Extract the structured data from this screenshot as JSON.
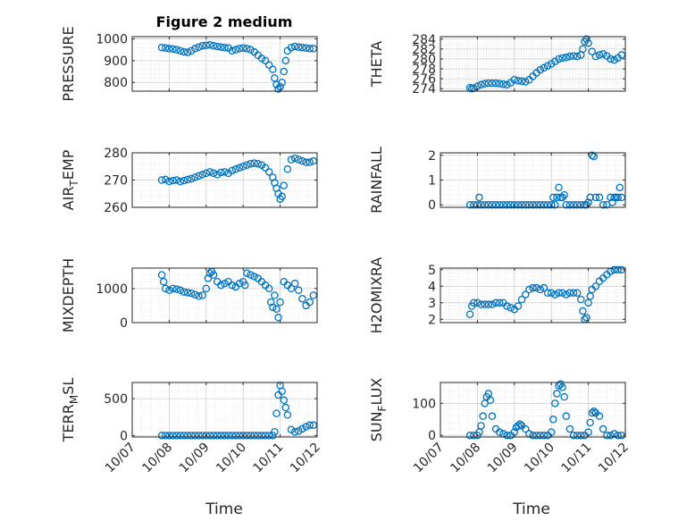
{
  "figure_title": "Figure 2 medium",
  "x_axis_label": "Time",
  "marker_color": "#0072BD",
  "chart_data": [
    {
      "type": "scatter",
      "ylabel_main": "PRESSURE",
      "ylabel_sub": "",
      "ylim": [
        760,
        1010
      ],
      "yticks": [
        800,
        900,
        1000
      ],
      "xlim": [
        0,
        5
      ],
      "xticks": [
        0,
        1,
        2,
        3,
        4,
        5
      ],
      "xticklabels": [
        "10/07",
        "10/08",
        "10/09",
        "10/10",
        "10/11",
        "10/12"
      ],
      "x": [
        0.8,
        0.9,
        1.0,
        1.1,
        1.2,
        1.3,
        1.4,
        1.5,
        1.6,
        1.7,
        1.8,
        1.9,
        2.0,
        2.1,
        2.2,
        2.3,
        2.4,
        2.5,
        2.6,
        2.7,
        2.8,
        2.9,
        3.0,
        3.1,
        3.2,
        3.3,
        3.4,
        3.5,
        3.6,
        3.7,
        3.8,
        3.85,
        3.9,
        3.95,
        4.0,
        4.05,
        4.1,
        4.15,
        4.2,
        4.3,
        4.4,
        4.5,
        4.6,
        4.7,
        4.8,
        4.9
      ],
      "y": [
        960,
        958,
        955,
        953,
        950,
        945,
        940,
        938,
        945,
        955,
        962,
        968,
        970,
        972,
        968,
        965,
        962,
        960,
        958,
        945,
        950,
        955,
        958,
        955,
        950,
        940,
        925,
        910,
        900,
        880,
        860,
        820,
        790,
        770,
        780,
        800,
        850,
        900,
        945,
        960,
        965,
        962,
        960,
        958,
        955,
        955
      ]
    },
    {
      "type": "scatter",
      "ylabel_main": "THETA",
      "ylabel_sub": "",
      "ylim": [
        273.5,
        284.5
      ],
      "yticks": [
        274,
        276,
        278,
        280,
        282,
        284
      ],
      "xlim": [
        0,
        5
      ],
      "xticks": [
        0,
        1,
        2,
        3,
        4,
        5
      ],
      "xticklabels": [
        "10/07",
        "10/08",
        "10/09",
        "10/10",
        "10/11",
        "10/12"
      ],
      "x": [
        0.8,
        0.85,
        0.9,
        1.0,
        1.1,
        1.2,
        1.3,
        1.4,
        1.5,
        1.6,
        1.7,
        1.8,
        1.9,
        2.0,
        2.1,
        2.2,
        2.3,
        2.4,
        2.5,
        2.6,
        2.7,
        2.8,
        2.9,
        3.0,
        3.1,
        3.2,
        3.3,
        3.4,
        3.5,
        3.6,
        3.7,
        3.8,
        3.85,
        3.9,
        3.95,
        4.0,
        4.1,
        4.2,
        4.3,
        4.4,
        4.5,
        4.6,
        4.7,
        4.8,
        4.9
      ],
      "y": [
        274.2,
        274.0,
        274.1,
        274.5,
        274.8,
        275.0,
        275.1,
        275.1,
        275.1,
        275.0,
        274.9,
        274.8,
        275.2,
        275.8,
        275.6,
        275.5,
        275.4,
        275.8,
        276.5,
        277.2,
        277.8,
        278.2,
        278.6,
        279.0,
        279.5,
        280.0,
        280.2,
        280.3,
        280.5,
        280.6,
        280.5,
        280.8,
        282.0,
        283.5,
        284.0,
        283.2,
        281.5,
        280.5,
        280.8,
        281.0,
        280.6,
        280.0,
        279.8,
        280.2,
        280.8
      ]
    },
    {
      "type": "scatter",
      "ylabel_main": "AIR",
      "ylabel_sub": "T",
      "ylabel_after": "EMP",
      "ylim": [
        260,
        280
      ],
      "yticks": [
        260,
        270,
        280
      ],
      "xlim": [
        0,
        5
      ],
      "xticks": [
        0,
        1,
        2,
        3,
        4,
        5
      ],
      "xticklabels": [
        "10/07",
        "10/08",
        "10/09",
        "10/10",
        "10/11",
        "10/12"
      ],
      "x": [
        0.8,
        0.9,
        1.0,
        1.1,
        1.2,
        1.3,
        1.4,
        1.5,
        1.6,
        1.7,
        1.8,
        1.9,
        2.0,
        2.1,
        2.2,
        2.3,
        2.4,
        2.5,
        2.6,
        2.7,
        2.8,
        2.9,
        3.0,
        3.1,
        3.2,
        3.3,
        3.4,
        3.5,
        3.6,
        3.7,
        3.8,
        3.85,
        3.9,
        3.95,
        4.0,
        4.05,
        4.1,
        4.2,
        4.3,
        4.4,
        4.5,
        4.6,
        4.7,
        4.8,
        4.9
      ],
      "y": [
        270,
        270.2,
        269.5,
        269.8,
        270.0,
        269.5,
        269.8,
        270.2,
        270.5,
        271.0,
        271.5,
        272.0,
        272.5,
        273.0,
        272.5,
        272.0,
        272.8,
        273.0,
        272.5,
        273.5,
        274.0,
        274.5,
        275.0,
        275.5,
        276.0,
        276.2,
        276.0,
        275.5,
        274.5,
        273.0,
        271.0,
        269.0,
        267.0,
        265.0,
        263.0,
        264.0,
        268.0,
        274.0,
        277.5,
        278.0,
        277.5,
        277.0,
        276.5,
        276.5,
        277.0
      ]
    },
    {
      "type": "scatter",
      "ylabel_main": "RAINFALL",
      "ylabel_sub": "",
      "ylim": [
        -0.1,
        2.1
      ],
      "yticks": [
        0,
        1,
        2
      ],
      "xlim": [
        0,
        5
      ],
      "xticks": [
        0,
        1,
        2,
        3,
        4,
        5
      ],
      "xticklabels": [
        "10/07",
        "10/08",
        "10/09",
        "10/10",
        "10/11",
        "10/12"
      ],
      "x": [
        0.8,
        0.9,
        1.0,
        1.05,
        1.1,
        1.2,
        1.3,
        1.4,
        1.5,
        1.6,
        1.7,
        1.8,
        1.9,
        2.0,
        2.1,
        2.2,
        2.3,
        2.4,
        2.5,
        2.6,
        2.7,
        2.8,
        2.9,
        3.0,
        3.05,
        3.1,
        3.15,
        3.2,
        3.25,
        3.3,
        3.35,
        3.4,
        3.5,
        3.6,
        3.7,
        3.8,
        3.9,
        3.95,
        4.0,
        4.05,
        4.1,
        4.15,
        4.2,
        4.3,
        4.4,
        4.5,
        4.6,
        4.65,
        4.7,
        4.75,
        4.8,
        4.85,
        4.9
      ],
      "y": [
        0,
        0,
        0,
        0.3,
        0,
        0,
        0,
        0,
        0,
        0,
        0,
        0,
        0,
        0,
        0,
        0,
        0,
        0,
        0,
        0,
        0,
        0,
        0,
        0,
        0.3,
        0,
        0.3,
        0.7,
        0.3,
        0.3,
        0.4,
        0,
        0,
        0,
        0,
        0,
        0,
        0,
        0.1,
        0.3,
        2.0,
        1.95,
        0.3,
        0.3,
        0,
        0,
        0.3,
        0.1,
        0.3,
        0.3,
        0.3,
        0.7,
        0.3
      ]
    },
    {
      "type": "scatter",
      "ylabel_main": "MIXDEPTH",
      "ylabel_sub": "",
      "ylim": [
        0,
        1600
      ],
      "yticks": [
        0,
        1000
      ],
      "xlim": [
        0,
        5
      ],
      "xticks": [
        0,
        1,
        2,
        3,
        4,
        5
      ],
      "xticklabels": [
        "10/07",
        "10/08",
        "10/09",
        "10/10",
        "10/11",
        "10/12"
      ],
      "x": [
        0.8,
        0.85,
        0.9,
        1.0,
        1.1,
        1.2,
        1.3,
        1.4,
        1.5,
        1.6,
        1.7,
        1.8,
        1.9,
        2.0,
        2.05,
        2.1,
        2.15,
        2.2,
        2.3,
        2.4,
        2.5,
        2.6,
        2.7,
        2.8,
        2.9,
        3.0,
        3.05,
        3.1,
        3.2,
        3.3,
        3.4,
        3.5,
        3.6,
        3.7,
        3.75,
        3.8,
        3.85,
        3.9,
        3.95,
        4.0,
        4.1,
        4.2,
        4.3,
        4.4,
        4.5,
        4.6,
        4.7,
        4.8,
        4.9
      ],
      "y": [
        1400,
        1200,
        1000,
        950,
        1000,
        980,
        950,
        900,
        880,
        860,
        820,
        780,
        800,
        1000,
        1300,
        1450,
        1500,
        1400,
        1200,
        1100,
        1150,
        1200,
        1100,
        1050,
        1150,
        1200,
        1100,
        1450,
        1400,
        1350,
        1300,
        1200,
        1100,
        1000,
        600,
        450,
        800,
        400,
        150,
        600,
        1200,
        1100,
        1000,
        1150,
        950,
        700,
        500,
        600,
        800
      ]
    },
    {
      "type": "scatter",
      "ylabel_main": "H2OMIXRA",
      "ylabel_sub": "",
      "ylim": [
        1.8,
        5.1
      ],
      "yticks": [
        2,
        3,
        4,
        5
      ],
      "xlim": [
        0,
        5
      ],
      "xticks": [
        0,
        1,
        2,
        3,
        4,
        5
      ],
      "xticklabels": [
        "10/07",
        "10/08",
        "10/09",
        "10/10",
        "10/11",
        "10/12"
      ],
      "x": [
        0.8,
        0.85,
        0.9,
        1.0,
        1.1,
        1.2,
        1.3,
        1.4,
        1.5,
        1.6,
        1.7,
        1.8,
        1.9,
        2.0,
        2.1,
        2.2,
        2.3,
        2.4,
        2.5,
        2.6,
        2.7,
        2.8,
        2.9,
        3.0,
        3.1,
        3.2,
        3.3,
        3.4,
        3.5,
        3.6,
        3.7,
        3.8,
        3.85,
        3.9,
        3.95,
        4.0,
        4.05,
        4.1,
        4.2,
        4.3,
        4.4,
        4.5,
        4.6,
        4.7,
        4.8,
        4.9
      ],
      "y": [
        2.3,
        2.8,
        3.0,
        3.0,
        2.9,
        2.9,
        2.9,
        2.9,
        3.0,
        3.0,
        3.0,
        2.8,
        2.7,
        2.6,
        2.8,
        3.2,
        3.5,
        3.8,
        3.9,
        3.9,
        3.8,
        3.9,
        3.6,
        3.6,
        3.5,
        3.6,
        3.6,
        3.5,
        3.6,
        3.6,
        3.6,
        3.2,
        2.5,
        2.0,
        2.1,
        3.0,
        3.4,
        3.8,
        4.0,
        4.3,
        4.5,
        4.7,
        4.9,
        5.0,
        5.0,
        5.0
      ]
    },
    {
      "type": "scatter",
      "ylabel_main": "TERR",
      "ylabel_sub": "M",
      "ylabel_after": "SL",
      "ylim": [
        -20,
        720
      ],
      "yticks": [
        0,
        500
      ],
      "xlim": [
        0,
        5
      ],
      "xticks": [
        0,
        1,
        2,
        3,
        4,
        5
      ],
      "xticklabels": [
        "10/07",
        "10/08",
        "10/09",
        "10/10",
        "10/11",
        "10/12"
      ],
      "x": [
        0.8,
        0.9,
        1.0,
        1.1,
        1.2,
        1.3,
        1.4,
        1.5,
        1.6,
        1.7,
        1.8,
        1.9,
        2.0,
        2.1,
        2.2,
        2.3,
        2.4,
        2.5,
        2.6,
        2.7,
        2.8,
        2.9,
        3.0,
        3.1,
        3.2,
        3.3,
        3.4,
        3.5,
        3.6,
        3.7,
        3.8,
        3.85,
        3.9,
        3.95,
        4.0,
        4.05,
        4.1,
        4.15,
        4.2,
        4.3,
        4.4,
        4.5,
        4.6,
        4.7,
        4.8,
        4.9
      ],
      "y": [
        0,
        0,
        0,
        0,
        0,
        0,
        0,
        0,
        0,
        0,
        0,
        0,
        0,
        0,
        0,
        0,
        0,
        0,
        0,
        0,
        0,
        0,
        0,
        0,
        0,
        0,
        0,
        0,
        0,
        0,
        0,
        50,
        300,
        550,
        680,
        600,
        480,
        380,
        280,
        80,
        50,
        60,
        90,
        120,
        140,
        140
      ]
    },
    {
      "type": "scatter",
      "ylabel_main": "SUN",
      "ylabel_sub": "F",
      "ylabel_after": "LUX",
      "ylim": [
        -5,
        165
      ],
      "yticks": [
        0,
        100
      ],
      "xlim": [
        0,
        5
      ],
      "xticks": [
        0,
        1,
        2,
        3,
        4,
        5
      ],
      "xticklabels": [
        "10/07",
        "10/08",
        "10/09",
        "10/10",
        "10/11",
        "10/12"
      ],
      "x": [
        0.8,
        0.9,
        1.0,
        1.05,
        1.1,
        1.15,
        1.2,
        1.25,
        1.3,
        1.35,
        1.4,
        1.5,
        1.6,
        1.7,
        1.8,
        1.9,
        2.0,
        2.05,
        2.1,
        2.15,
        2.2,
        2.3,
        2.4,
        2.5,
        2.6,
        2.7,
        2.8,
        2.9,
        3.0,
        3.05,
        3.1,
        3.15,
        3.2,
        3.25,
        3.3,
        3.35,
        3.4,
        3.5,
        3.6,
        3.7,
        3.8,
        3.9,
        4.0,
        4.05,
        4.1,
        4.15,
        4.2,
        4.3,
        4.4,
        4.5,
        4.6,
        4.7,
        4.8,
        4.9
      ],
      "y": [
        0,
        0,
        0,
        10,
        30,
        60,
        100,
        120,
        130,
        110,
        60,
        20,
        10,
        5,
        0,
        0,
        10,
        25,
        30,
        35,
        30,
        20,
        5,
        0,
        0,
        0,
        0,
        0,
        10,
        50,
        100,
        130,
        155,
        160,
        150,
        120,
        60,
        20,
        0,
        0,
        0,
        0,
        10,
        40,
        70,
        75,
        70,
        60,
        20,
        0,
        0,
        5,
        0,
        0
      ]
    }
  ]
}
